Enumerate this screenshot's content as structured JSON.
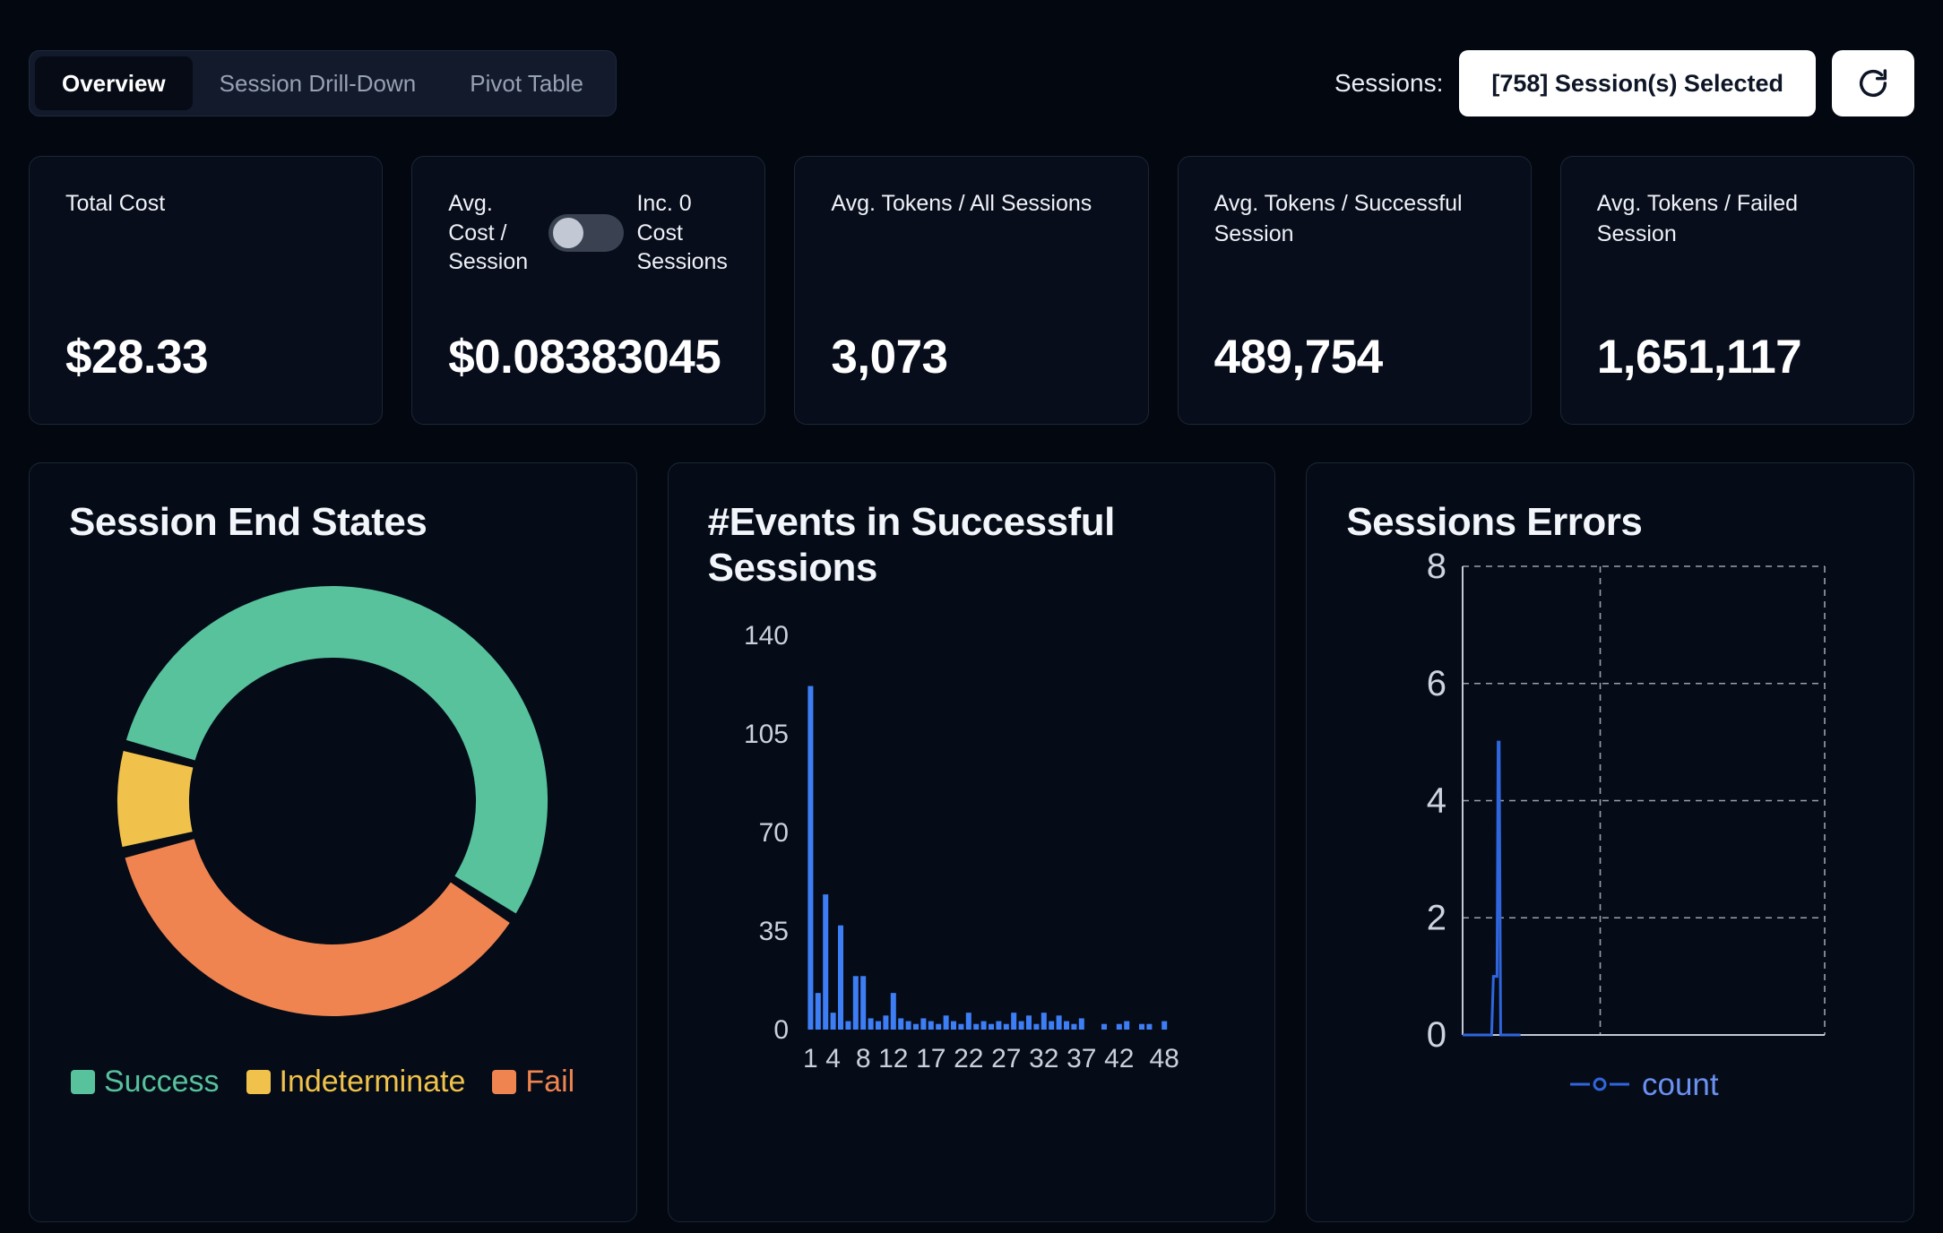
{
  "header": {
    "tabs": [
      {
        "label": "Overview",
        "active": true
      },
      {
        "label": "Session Drill-Down",
        "active": false
      },
      {
        "label": "Pivot Table",
        "active": false
      }
    ],
    "sessions_label": "Sessions:",
    "sessions_selected": "[758] Session(s) Selected",
    "refresh_icon": "refresh-icon"
  },
  "stat_cards": [
    {
      "label": "Total Cost",
      "value": "$28.33"
    },
    {
      "label_left": "Avg. Cost / Session",
      "toggle_state": "off",
      "label_right": "Inc. 0 Cost Sessions",
      "value": "$0.08383045"
    },
    {
      "label": "Avg. Tokens / All Sessions",
      "value": "3,073"
    },
    {
      "label": "Avg. Tokens / Successful Session",
      "value": "489,754"
    },
    {
      "label": "Avg. Tokens / Failed Session",
      "value": "1,651,117"
    }
  ],
  "chart_data": [
    {
      "type": "pie",
      "donut": true,
      "title": "Session End States",
      "start_angle_deg": -75,
      "segments": [
        {
          "label": "Success",
          "value": 55,
          "color": "#57c29c"
        },
        {
          "label": "Fail",
          "value": 37,
          "color": "#ef8450"
        },
        {
          "label": "Indeterminate",
          "value": 8,
          "color": "#f0c24b"
        }
      ],
      "legend_order": [
        "Success",
        "Indeterminate",
        "Fail"
      ],
      "legend_position": "bottom"
    },
    {
      "type": "bar",
      "title": "#Events in Successful Sessions",
      "xlabel": "",
      "ylabel": "",
      "bar_color": "#3d7ef5",
      "xlim": [
        0,
        50
      ],
      "ylim": [
        0,
        140
      ],
      "xticks": [
        1,
        4,
        8,
        12,
        17,
        22,
        27,
        32,
        37,
        42,
        48
      ],
      "yticks": [
        0,
        35,
        70,
        105,
        140
      ],
      "x": [
        1,
        2,
        3,
        4,
        5,
        6,
        7,
        8,
        9,
        10,
        11,
        12,
        13,
        14,
        15,
        16,
        17,
        18,
        19,
        20,
        21,
        22,
        23,
        24,
        25,
        26,
        27,
        28,
        29,
        30,
        31,
        32,
        33,
        34,
        35,
        36,
        37,
        40,
        42,
        43,
        45,
        46,
        48
      ],
      "values": [
        122,
        13,
        48,
        6,
        37,
        3,
        19,
        19,
        4,
        3,
        5,
        13,
        4,
        3,
        2,
        4,
        3,
        2,
        5,
        3,
        2,
        6,
        2,
        3,
        2,
        3,
        2,
        6,
        3,
        5,
        2,
        6,
        3,
        5,
        3,
        2,
        4,
        2,
        2,
        3,
        2,
        2,
        3
      ],
      "grid": false
    },
    {
      "type": "line",
      "title": "Sessions Errors",
      "line_color": "#2f66dd",
      "legend_text_color": "#6b91f2",
      "xlim": [
        0,
        100
      ],
      "ylim": [
        0,
        8
      ],
      "yticks": [
        0,
        2,
        4,
        6,
        8
      ],
      "grid": "dashed",
      "series": [
        {
          "name": "count",
          "points": [
            [
              0,
              0
            ],
            [
              8,
              0
            ],
            [
              8.5,
              1
            ],
            [
              9.5,
              1
            ],
            [
              9.8,
              5
            ],
            [
              10.1,
              5
            ],
            [
              10.5,
              0
            ],
            [
              16,
              0
            ]
          ]
        }
      ],
      "legend_position": "bottom"
    }
  ]
}
